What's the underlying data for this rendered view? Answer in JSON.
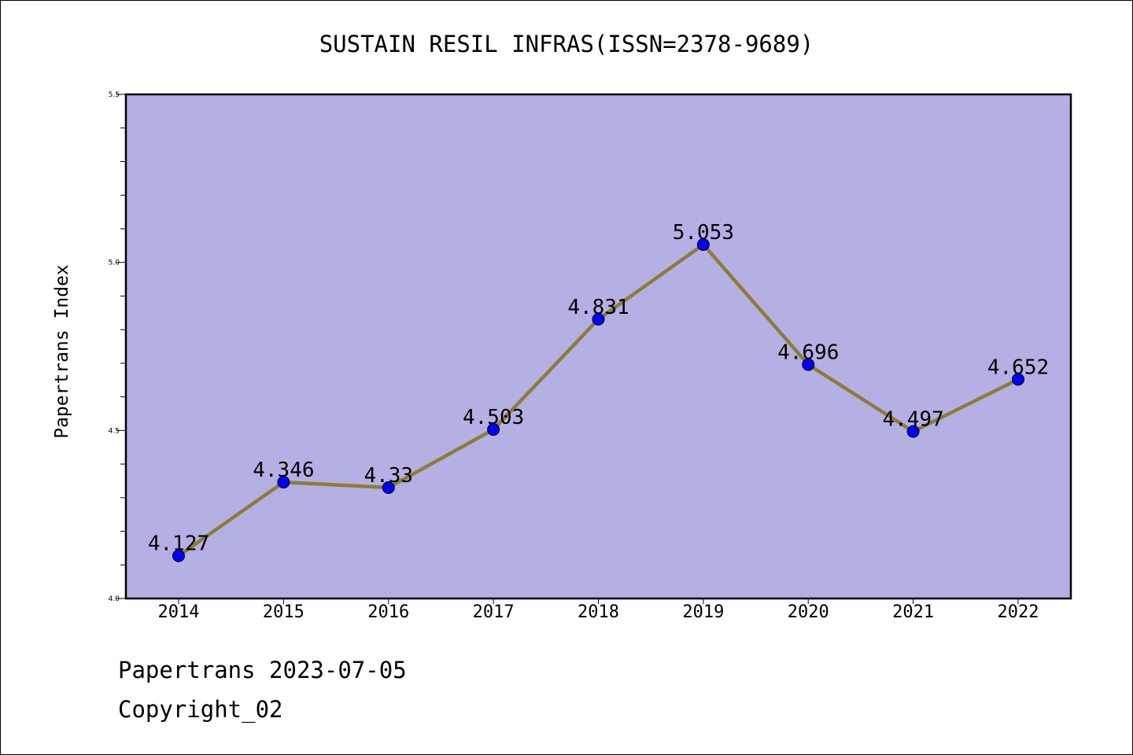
{
  "chart_data": {
    "type": "line",
    "title": "SUSTAIN RESIL INFRAS(ISSN=2378-9689)",
    "xlabel": "",
    "ylabel": "Papertrans Index",
    "categories": [
      "2014",
      "2015",
      "2016",
      "2017",
      "2018",
      "2019",
      "2020",
      "2021",
      "2022"
    ],
    "series": [
      {
        "values": [
          4.127,
          4.346,
          4.33,
          4.503,
          4.831,
          5.053,
          4.696,
          4.497,
          4.652
        ],
        "labels": [
          "4.127",
          "4.346",
          "4.33",
          "4.503",
          "4.831",
          "5.053",
          "4.696",
          "4.497",
          "4.652"
        ]
      }
    ],
    "ylim": [
      4.0,
      5.5
    ],
    "yticks": [
      {
        "value": 4.0,
        "label": "4.0"
      },
      {
        "value": 4.5,
        "label": "4.5"
      },
      {
        "value": 5.0,
        "label": "5.0"
      },
      {
        "value": 5.5,
        "label": "5.5"
      }
    ],
    "y_minor_step": 0.1,
    "grid": false,
    "colors": {
      "plot_background": "#b5b0e3",
      "line": "#8b7d3a",
      "marker": "#0000ff",
      "axis": "#000000"
    }
  },
  "footer": {
    "line1": "Papertrans 2023-07-05",
    "line2": "Copyright_02"
  }
}
